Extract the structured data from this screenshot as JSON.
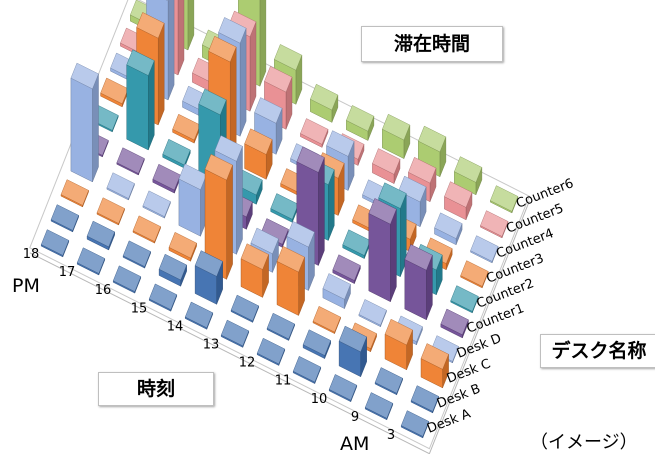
{
  "chart_data": {
    "type": "3d-bar",
    "title": "滞在時間",
    "xlabel": "時刻",
    "ylabel": "デスク名称",
    "x_start_label": "AM",
    "x_end_label": "PM",
    "hours": [
      "3",
      "9",
      "10",
      "11",
      "12",
      "13",
      "14",
      "15",
      "16",
      "17",
      "18"
    ],
    "desks": [
      "Desk A",
      "Desk B",
      "Desk C",
      "Desk D",
      "Counter1",
      "Counter2",
      "Counter3",
      "Counter4",
      "Counter5",
      "Counter6"
    ],
    "colors": [
      "#3d6eaf",
      "#3d6eaf",
      "#ee7d2c",
      "#93aee0",
      "#6f4c95",
      "#2a94a8",
      "#ee7d2c",
      "#93aee0",
      "#e88b8f",
      "#a8c96a",
      "#b4a7d6"
    ],
    "series": [
      {
        "name": "Desk A",
        "values": [
          0,
          0,
          0,
          0,
          0,
          0,
          0,
          0,
          0,
          0,
          0
        ]
      },
      {
        "name": "Desk B",
        "values": [
          0,
          0,
          0.8,
          0.1,
          0,
          0,
          0.9,
          0.2,
          0,
          0.1,
          0
        ]
      },
      {
        "name": "Desk C",
        "values": [
          0.6,
          0.8,
          0.1,
          0,
          1.4,
          0.9,
          3.2,
          0.1,
          0,
          0,
          0
        ]
      },
      {
        "name": "Desk D",
        "values": [
          0,
          0.1,
          0,
          0.3,
          1.4,
          0.6,
          3.0,
          1.5,
          0,
          0,
          3.0
        ]
      },
      {
        "name": "Counter1",
        "values": [
          0.1,
          1.6,
          2.5,
          0.1,
          3.0,
          0.1,
          0.4,
          0,
          0.1,
          0,
          0
        ]
      },
      {
        "name": "Counter2",
        "values": [
          0,
          0.8,
          2.2,
          0.1,
          1.8,
          0.1,
          0.3,
          2.3,
          0.1,
          2.4,
          0
        ]
      },
      {
        "name": "Counter3",
        "values": [
          0,
          0.2,
          0.4,
          0.1,
          1.2,
          0.1,
          0.8,
          3.2,
          0.1,
          2.8,
          0.1
        ]
      },
      {
        "name": "Counter4",
        "values": [
          0,
          0.2,
          0.8,
          0.1,
          1.1,
          0.1,
          1.0,
          3.0,
          0.2,
          3.2,
          0.1
        ]
      },
      {
        "name": "Counter5",
        "values": [
          0,
          0.4,
          0.6,
          0.3,
          0.2,
          0.1,
          1.2,
          2.4,
          0.3,
          3.6,
          0.1
        ]
      },
      {
        "name": "Counter6",
        "values": [
          0,
          0.4,
          0.8,
          0.6,
          0.3,
          0.4,
          1.1,
          2.8,
          0.4,
          4.4,
          0.2
        ]
      }
    ]
  },
  "labels": {
    "stay_time": "滞在時間",
    "desk_name": "デスク名称",
    "hour": "時刻",
    "image_note": "（イメージ）"
  }
}
